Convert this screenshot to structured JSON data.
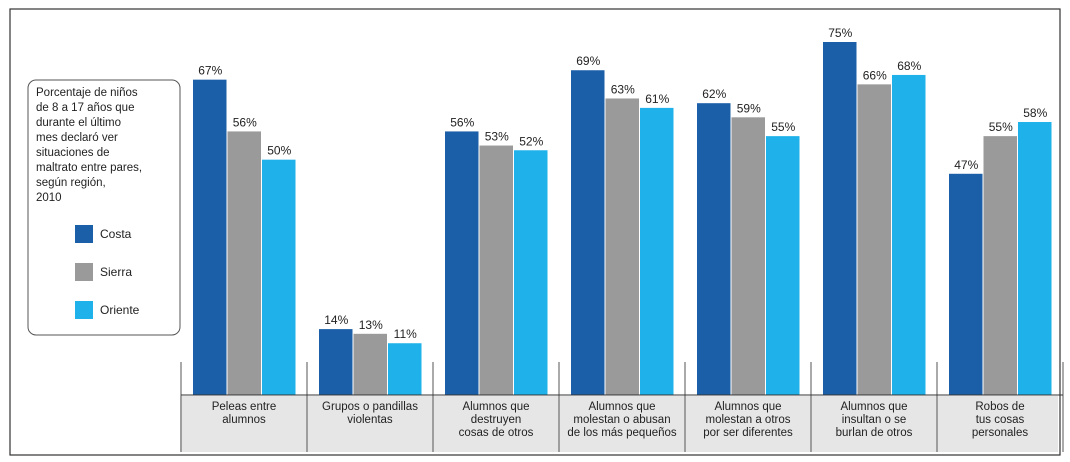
{
  "chart_data": {
    "type": "bar",
    "title": "Porcentaje de niños\nde 8 a 17 años que\ndurante el último\nmes declaró ver\nsituaciones de\nmaltrato entre pares,\nsegún región,\n2010",
    "categories": [
      "Peleas entre\nalumnos",
      "Grupos o pandillas\nviolentas",
      "Alumnos que\ndestruyen\ncosas de otros",
      "Alumnos que\nmolestan o abusan\nde los más pequeños",
      "Alumnos que\nmolestan a otros\npor ser diferentes",
      "Alumnos que\ninsultan o se\nburlan de otros",
      "Robos de\ntus cosas\npersonales"
    ],
    "series": [
      {
        "name": "Costa",
        "color": "#1b5fa9",
        "values": [
          67,
          14,
          56,
          69,
          62,
          75,
          47
        ],
        "value_labels": [
          "67%",
          "14%",
          "56%",
          "69%",
          "62%",
          "75%",
          "47%"
        ]
      },
      {
        "name": "Sierra",
        "color": "#9a9a9a",
        "values": [
          56,
          13,
          53,
          63,
          59,
          66,
          55
        ],
        "value_labels": [
          "56%",
          "13%",
          "53%",
          "63%",
          "59%",
          "66%",
          "55%"
        ]
      },
      {
        "name": "Oriente",
        "color": "#1fb2ea",
        "values": [
          50,
          11,
          52,
          61,
          55,
          68,
          58
        ],
        "value_labels": [
          "50%",
          "11%",
          "52%",
          "61%",
          "55%",
          "68%",
          "58%"
        ]
      }
    ]
  }
}
